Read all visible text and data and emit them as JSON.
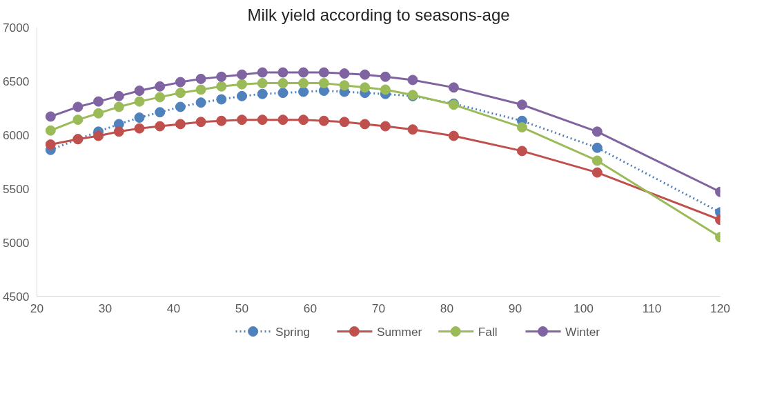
{
  "chart_data": {
    "type": "line",
    "title": "Milk yield according to seasons-age",
    "x": [
      22,
      26,
      29,
      32,
      35,
      38,
      41,
      44,
      47,
      50,
      53,
      56,
      59,
      62,
      65,
      68,
      71,
      75,
      81,
      91,
      102,
      120
    ],
    "series": [
      {
        "name": "Spring",
        "color": "#4f81bd",
        "line_style": "dotted",
        "values": [
          5860,
          5960,
          6030,
          6100,
          6160,
          6210,
          6260,
          6300,
          6330,
          6360,
          6380,
          6390,
          6400,
          6410,
          6400,
          6390,
          6380,
          6360,
          6290,
          6130,
          5880,
          5280
        ]
      },
      {
        "name": "Summer",
        "color": "#c0504d",
        "line_style": "solid",
        "values": [
          5910,
          5960,
          5990,
          6030,
          6060,
          6080,
          6100,
          6120,
          6130,
          6140,
          6140,
          6140,
          6140,
          6130,
          6120,
          6100,
          6080,
          6050,
          5990,
          5850,
          5650,
          5210
        ]
      },
      {
        "name": "Fall",
        "color": "#9bbb59",
        "line_style": "solid",
        "values": [
          6040,
          6140,
          6200,
          6260,
          6310,
          6350,
          6390,
          6420,
          6450,
          6470,
          6480,
          6480,
          6480,
          6480,
          6460,
          6440,
          6420,
          6370,
          6280,
          6070,
          5760,
          5050
        ]
      },
      {
        "name": "Winter",
        "color": "#8064a2",
        "line_style": "solid",
        "values": [
          6170,
          6260,
          6310,
          6360,
          6410,
          6450,
          6490,
          6520,
          6540,
          6560,
          6580,
          6580,
          6580,
          6580,
          6570,
          6560,
          6540,
          6510,
          6440,
          6280,
          6030,
          5470
        ]
      }
    ],
    "xlim": [
      20,
      120
    ],
    "xticks": [
      20,
      30,
      40,
      50,
      60,
      70,
      80,
      90,
      100,
      110,
      120
    ],
    "ylim": [
      4500,
      7000
    ],
    "yticks": [
      4500,
      5000,
      5500,
      6000,
      6500,
      7000
    ],
    "grid": false,
    "legend": "bottom",
    "marker": "circle"
  }
}
